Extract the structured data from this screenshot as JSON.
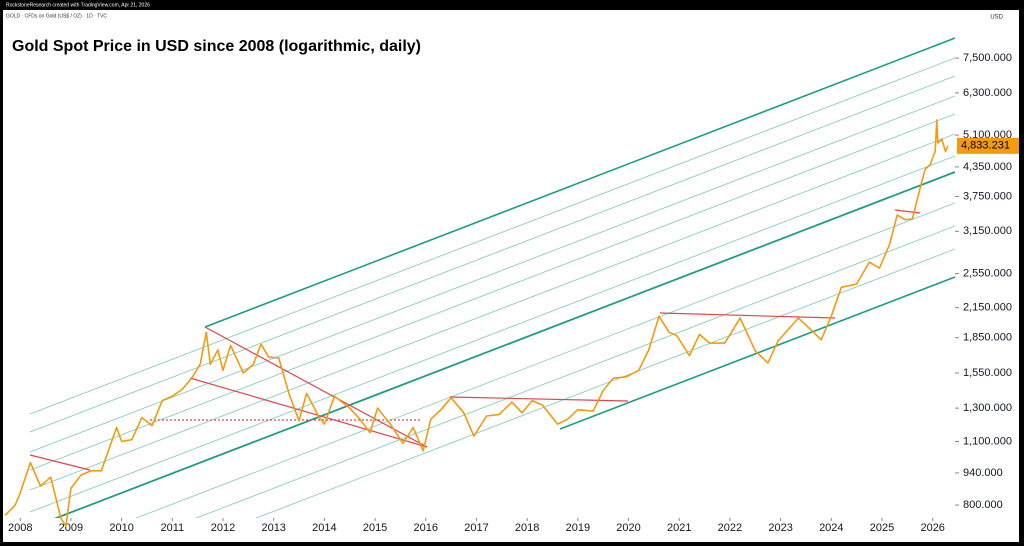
{
  "header": "RockstoneResearch created with TradingView.com, Apr 21, 2026",
  "chart_data": {
    "type": "line",
    "title": "Gold Spot Price in USD since 2008 (logarithmic, daily)",
    "symbol_info": "GOLD · CFDs on Gold (US$ / OZ) · 1D · TVC",
    "currency": "USD",
    "log_scale": true,
    "color": "#f59a0c",
    "last_price_label": "4,833.231",
    "x": [
      2007.7,
      2007.9,
      2008.0,
      2008.2,
      2008.4,
      2008.6,
      2008.8,
      2008.9,
      2009.0,
      2009.2,
      2009.4,
      2009.6,
      2009.9,
      2010.0,
      2010.2,
      2010.4,
      2010.6,
      2010.8,
      2011.0,
      2011.2,
      2011.4,
      2011.55,
      2011.67,
      2011.75,
      2011.9,
      2012.0,
      2012.15,
      2012.4,
      2012.6,
      2012.75,
      2012.9,
      2013.1,
      2013.3,
      2013.5,
      2013.65,
      2013.9,
      2014.0,
      2014.2,
      2014.5,
      2014.7,
      2014.9,
      2015.05,
      2015.3,
      2015.55,
      2015.75,
      2015.95,
      2016.1,
      2016.3,
      2016.5,
      2016.75,
      2016.95,
      2017.2,
      2017.45,
      2017.7,
      2017.9,
      2018.1,
      2018.3,
      2018.6,
      2018.8,
      2019.0,
      2019.3,
      2019.5,
      2019.7,
      2019.95,
      2020.2,
      2020.4,
      2020.6,
      2020.8,
      2020.95,
      2021.2,
      2021.4,
      2021.6,
      2021.9,
      2022.2,
      2022.5,
      2022.75,
      2022.95,
      2023.35,
      2023.65,
      2023.8,
      2024.0,
      2024.2,
      2024.5,
      2024.75,
      2024.95,
      2025.15,
      2025.3,
      2025.45,
      2025.6,
      2025.75,
      2025.85,
      2025.95,
      2026.05,
      2026.08,
      2026.1,
      2026.18,
      2026.25,
      2026.3
    ],
    "values": [
      760,
      800,
      850,
      990,
      880,
      920,
      750,
      720,
      870,
      930,
      950,
      950,
      1180,
      1100,
      1110,
      1240,
      1190,
      1350,
      1380,
      1430,
      1520,
      1620,
      1900,
      1620,
      1740,
      1570,
      1780,
      1550,
      1620,
      1790,
      1680,
      1670,
      1400,
      1220,
      1400,
      1240,
      1200,
      1380,
      1300,
      1230,
      1150,
      1300,
      1200,
      1090,
      1180,
      1050,
      1230,
      1290,
      1370,
      1270,
      1130,
      1250,
      1260,
      1340,
      1270,
      1350,
      1320,
      1200,
      1230,
      1290,
      1280,
      1420,
      1510,
      1520,
      1570,
      1740,
      2060,
      1900,
      1870,
      1690,
      1880,
      1800,
      1800,
      2040,
      1730,
      1630,
      1820,
      2040,
      1900,
      1830,
      2060,
      2380,
      2420,
      2700,
      2620,
      2950,
      3420,
      3340,
      3350,
      3900,
      4300,
      4400,
      4700,
      5500,
      4900,
      5000,
      4700,
      4833.231
    ],
    "xlim": [
      2007.66,
      2026.44
    ],
    "xticks": [
      2008,
      2009,
      2010,
      2011,
      2012,
      2013,
      2014,
      2015,
      2016,
      2017,
      2018,
      2019,
      2020,
      2021,
      2022,
      2023,
      2024,
      2025,
      2026
    ],
    "ylim": [
      750,
      9540
    ],
    "yticks": [
      {
        "value": 800,
        "label": "800.000"
      },
      {
        "value": 940,
        "label": "940.000"
      },
      {
        "value": 1100,
        "label": "1,100.000"
      },
      {
        "value": 1300,
        "label": "1,300.000"
      },
      {
        "value": 1550,
        "label": "1,550.000"
      },
      {
        "value": 1850,
        "label": "1,850.000"
      },
      {
        "value": 2150,
        "label": "2,150.000"
      },
      {
        "value": 2550,
        "label": "2,550.000"
      },
      {
        "value": 3150,
        "label": "3,150.000"
      },
      {
        "value": 3750,
        "label": "3,750.000"
      },
      {
        "value": 4350,
        "label": "4,350.000"
      },
      {
        "value": 5100,
        "label": "5,100.000"
      },
      {
        "value": 6300,
        "label": "6,300.000"
      },
      {
        "value": 7500,
        "label": "7,500.000"
      }
    ]
  }
}
